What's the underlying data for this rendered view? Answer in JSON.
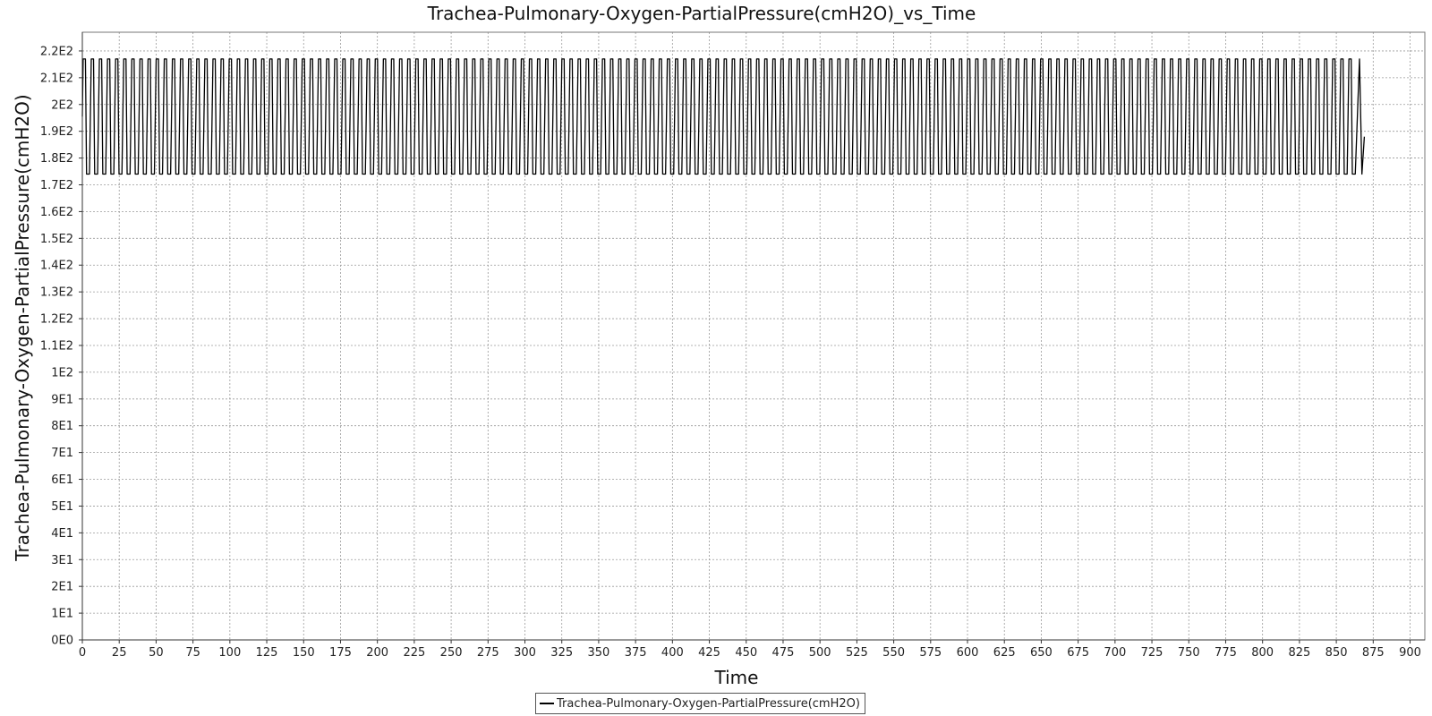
{
  "chart_data": {
    "type": "line",
    "title": "Trachea-Pulmonary-Oxygen-PartialPressure(cmH2O)_vs_Time",
    "xlabel": "Time",
    "ylabel": "Trachea-Pulmonary-Oxygen-PartialPressure(cmH2O)",
    "xlim": [
      0,
      910
    ],
    "ylim": [
      0,
      227
    ],
    "x_ticks": [
      0,
      25,
      50,
      75,
      100,
      125,
      150,
      175,
      200,
      225,
      250,
      275,
      300,
      325,
      350,
      375,
      400,
      425,
      450,
      475,
      500,
      525,
      550,
      575,
      600,
      625,
      650,
      675,
      700,
      725,
      750,
      775,
      800,
      825,
      850,
      875,
      900
    ],
    "x_tick_labels": [
      "0",
      "25",
      "50",
      "75",
      "100",
      "125",
      "150",
      "175",
      "200",
      "225",
      "250",
      "275",
      "300",
      "325",
      "350",
      "375",
      "400",
      "425",
      "450",
      "475",
      "500",
      "525",
      "550",
      "575",
      "600",
      "625",
      "650",
      "675",
      "700",
      "725",
      "750",
      "775",
      "800",
      "825",
      "850",
      "875",
      "900"
    ],
    "y_ticks": [
      0,
      10,
      20,
      30,
      40,
      50,
      60,
      70,
      80,
      90,
      100,
      110,
      120,
      130,
      140,
      150,
      160,
      170,
      180,
      190,
      200,
      210,
      220
    ],
    "y_tick_labels": [
      "0E0",
      "1E1",
      "2E1",
      "3E1",
      "4E1",
      "5E1",
      "6E1",
      "7E1",
      "8E1",
      "9E1",
      "1E2",
      "1.1E2",
      "1.2E2",
      "1.3E2",
      "1.4E2",
      "1.5E2",
      "1.6E2",
      "1.7E2",
      "1.8E2",
      "1.9E2",
      "2E2",
      "2.1E2",
      "2.2E2"
    ],
    "grid": true,
    "legend_position": "bottom-center",
    "series": [
      {
        "name": "Trachea-Pulmonary-Oxygen-PartialPressure(cmH2O)",
        "color": "#000000",
        "pattern": "periodic-oscillation",
        "x_start": 0,
        "x_end": 869,
        "period": 5.5,
        "peak": 217,
        "trough": 174,
        "end_value": 188
      }
    ]
  }
}
